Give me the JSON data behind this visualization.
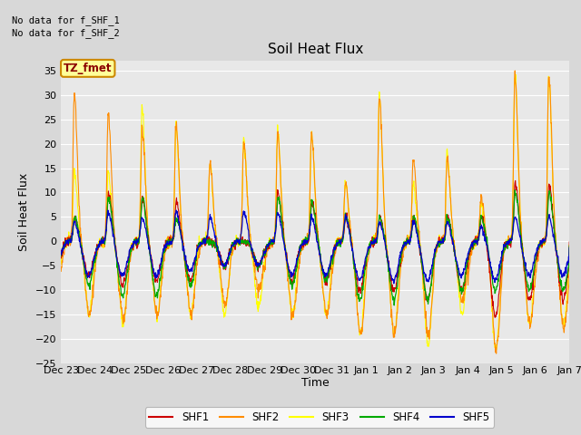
{
  "title": "Soil Heat Flux",
  "ylabel": "Soil Heat Flux",
  "xlabel": "Time",
  "ylim": [
    -25,
    37
  ],
  "yticks": [
    -25,
    -20,
    -15,
    -10,
    -5,
    0,
    5,
    10,
    15,
    20,
    25,
    30,
    35
  ],
  "no_data_text_1": "No data for f_SHF_1",
  "no_data_text_2": "No data for f_SHF_2",
  "legend_label": "TZ_fmet",
  "series_names": [
    "SHF1",
    "SHF2",
    "SHF3",
    "SHF4",
    "SHF5"
  ],
  "series_colors": [
    "#cc0000",
    "#ff8c00",
    "#ffff00",
    "#00aa00",
    "#0000cc"
  ],
  "background_color": "#d8d8d8",
  "plot_bg_color": "#e8e8e8",
  "title_fontsize": 11,
  "label_fontsize": 9,
  "tick_fontsize": 8,
  "n_days": 15,
  "n_per_day": 96,
  "day_labels": [
    "Dec 23",
    "Dec 24",
    "Dec 25",
    "Dec 26",
    "Dec 27",
    "Dec 28",
    "Dec 29",
    "Dec 30",
    "Dec 31",
    "Jan 1",
    "Jan 2",
    "Jan 3",
    "Jan 4",
    "Jan 5",
    "Jan 6",
    "Jan 7"
  ]
}
